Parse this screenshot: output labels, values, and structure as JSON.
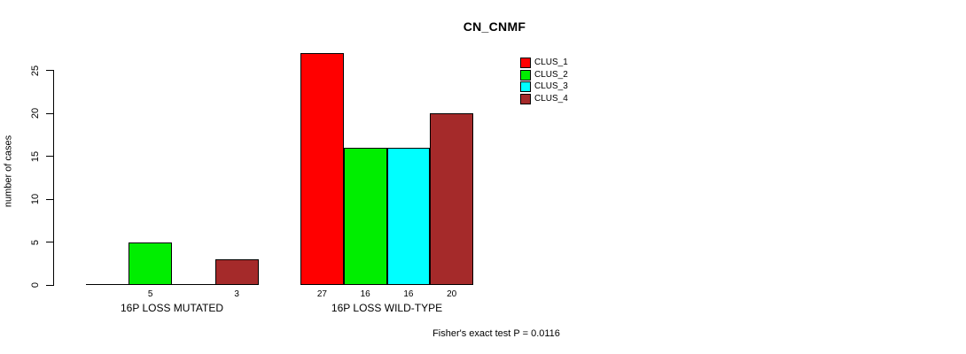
{
  "title": "CN_CNMF",
  "ylabel": "number of cases",
  "footnote": "Fisher's exact test P = 0.0116",
  "chart_data": {
    "type": "bar",
    "grouped": true,
    "title": "CN_CNMF",
    "xlabel": "",
    "ylabel": "number of cases",
    "categories": [
      "16P LOSS MUTATED",
      "16P LOSS WILD-TYPE"
    ],
    "series": [
      {
        "name": "CLUS_1",
        "color": "#ff0000",
        "values": [
          0,
          27
        ]
      },
      {
        "name": "CLUS_2",
        "color": "#00ee00",
        "values": [
          5,
          16
        ]
      },
      {
        "name": "CLUS_3",
        "color": "#00ffff",
        "values": [
          0,
          16
        ]
      },
      {
        "name": "CLUS_4",
        "color": "#a52a2a",
        "values": [
          3,
          20
        ]
      }
    ],
    "bar_value_labels": [
      "5",
      "3",
      "27",
      "16",
      "16",
      "20"
    ],
    "yticks": [
      0,
      5,
      10,
      15,
      20,
      25
    ],
    "ylim": [
      0,
      27
    ],
    "grid": false,
    "legend_position": "top-right",
    "annotation": "Fisher's exact test P = 0.0116"
  }
}
